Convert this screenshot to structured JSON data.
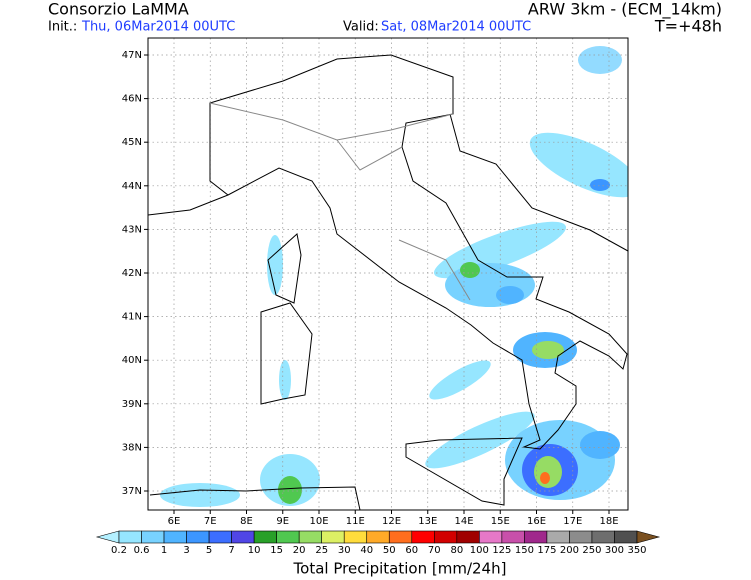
{
  "header": {
    "title": "Consorzio LaMMA",
    "init_label": "Init.:",
    "init_value": "Thu, 06Mar2014 00UTC",
    "valid_label": "Valid:",
    "valid_value": "Sat, 08Mar2014 00UTC",
    "model": "ARW 3km - (ECM_14km)",
    "lead_time": "T=+48h"
  },
  "map": {
    "lat_labels": [
      "47N",
      "46N",
      "45N",
      "44N",
      "43N",
      "42N",
      "41N",
      "40N",
      "39N",
      "38N",
      "37N"
    ],
    "lon_labels": [
      "6E",
      "7E",
      "8E",
      "9E",
      "10E",
      "11E",
      "12E",
      "13E",
      "14E",
      "15E",
      "16E",
      "17E",
      "18E"
    ]
  },
  "colorbar": {
    "levels": [
      0.2,
      0.6,
      1,
      3,
      5,
      7,
      10,
      15,
      20,
      25,
      30,
      40,
      50,
      60,
      70,
      80,
      100,
      125,
      150,
      175,
      200,
      250,
      300,
      350
    ],
    "colors": [
      "#b4f0ff",
      "#96e6ff",
      "#78d2ff",
      "#50b4ff",
      "#3c96ff",
      "#3c6eff",
      "#5046e6",
      "#28a028",
      "#50c850",
      "#96dc64",
      "#dcf064",
      "#ffdc3c",
      "#ffaa28",
      "#ff6e1e",
      "#ff0000",
      "#d20000",
      "#a00000",
      "#e678c8",
      "#c850aa",
      "#a0288c",
      "#aaaaaa",
      "#8c8c8c",
      "#6e6e6e",
      "#505050",
      "#a07838",
      "#7a5020"
    ],
    "title": "Total Precipitation [mm/24h]"
  }
}
